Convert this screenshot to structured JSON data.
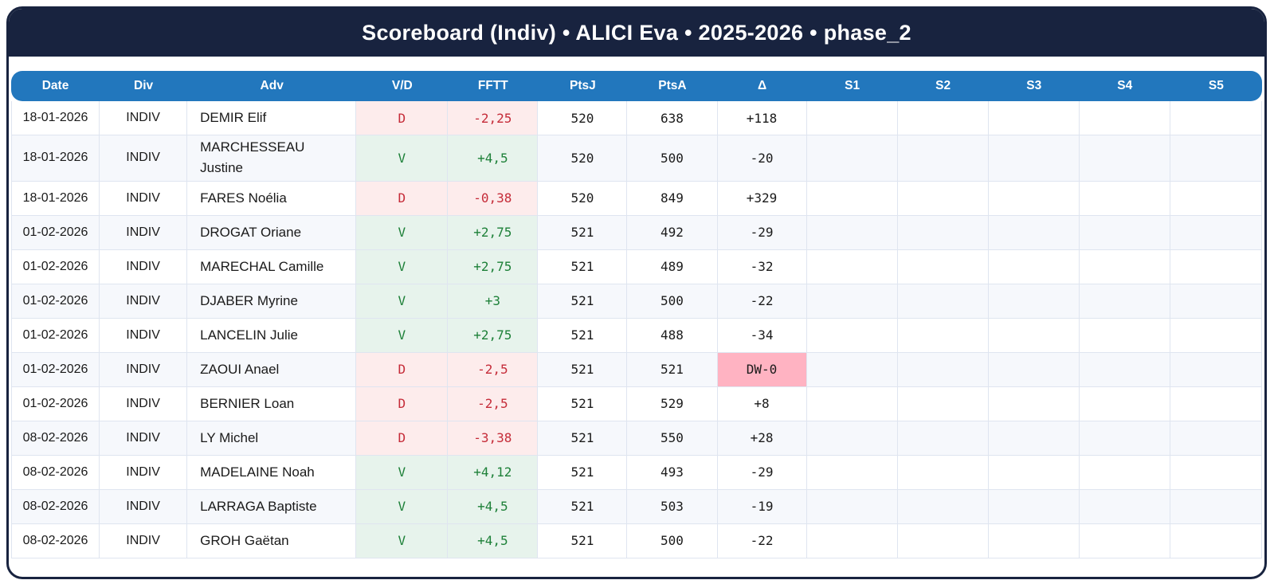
{
  "title": "Scoreboard (Indiv) • ALICI Eva • 2025-2026 • phase_2",
  "table": {
    "columns": [
      "Date",
      "Div",
      "Adv",
      "V/D",
      "FFTT",
      "PtsJ",
      "PtsA",
      "Δ",
      "S1",
      "S2",
      "S3",
      "S4",
      "S5"
    ],
    "rows": [
      {
        "date": "18-01-2026",
        "div": "INDIV",
        "adv": "DEMIR Elif",
        "vd": "D",
        "fftt": "-2,25",
        "ptsj": "520",
        "ptsa": "638",
        "delta": "+118",
        "flag": false,
        "sets": [
          "",
          "",
          "",
          "",
          ""
        ]
      },
      {
        "date": "18-01-2026",
        "div": "INDIV",
        "adv": "MARCHESSEAU Justine",
        "vd": "V",
        "fftt": "+4,5",
        "ptsj": "520",
        "ptsa": "500",
        "delta": "-20",
        "flag": false,
        "sets": [
          "",
          "",
          "",
          "",
          ""
        ]
      },
      {
        "date": "18-01-2026",
        "div": "INDIV",
        "adv": "FARES Noélia",
        "vd": "D",
        "fftt": "-0,38",
        "ptsj": "520",
        "ptsa": "849",
        "delta": "+329",
        "flag": false,
        "sets": [
          "",
          "",
          "",
          "",
          ""
        ]
      },
      {
        "date": "01-02-2026",
        "div": "INDIV",
        "adv": "DROGAT Oriane",
        "vd": "V",
        "fftt": "+2,75",
        "ptsj": "521",
        "ptsa": "492",
        "delta": "-29",
        "flag": false,
        "sets": [
          "",
          "",
          "",
          "",
          ""
        ]
      },
      {
        "date": "01-02-2026",
        "div": "INDIV",
        "adv": "MARECHAL Camille",
        "vd": "V",
        "fftt": "+2,75",
        "ptsj": "521",
        "ptsa": "489",
        "delta": "-32",
        "flag": false,
        "sets": [
          "",
          "",
          "",
          "",
          ""
        ]
      },
      {
        "date": "01-02-2026",
        "div": "INDIV",
        "adv": "DJABER Myrine",
        "vd": "V",
        "fftt": "+3",
        "ptsj": "521",
        "ptsa": "500",
        "delta": "-22",
        "flag": false,
        "sets": [
          "",
          "",
          "",
          "",
          ""
        ]
      },
      {
        "date": "01-02-2026",
        "div": "INDIV",
        "adv": "LANCELIN Julie",
        "vd": "V",
        "fftt": "+2,75",
        "ptsj": "521",
        "ptsa": "488",
        "delta": "-34",
        "flag": false,
        "sets": [
          "",
          "",
          "",
          "",
          ""
        ]
      },
      {
        "date": "01-02-2026",
        "div": "INDIV",
        "adv": "ZAOUI Anael",
        "vd": "D",
        "fftt": "-2,5",
        "ptsj": "521",
        "ptsa": "521",
        "delta": "DW-0",
        "flag": true,
        "sets": [
          "",
          "",
          "",
          "",
          ""
        ]
      },
      {
        "date": "01-02-2026",
        "div": "INDIV",
        "adv": "BERNIER Loan",
        "vd": "D",
        "fftt": "-2,5",
        "ptsj": "521",
        "ptsa": "529",
        "delta": "+8",
        "flag": false,
        "sets": [
          "",
          "",
          "",
          "",
          ""
        ]
      },
      {
        "date": "08-02-2026",
        "div": "INDIV",
        "adv": "LY Michel",
        "vd": "D",
        "fftt": "-3,38",
        "ptsj": "521",
        "ptsa": "550",
        "delta": "+28",
        "flag": false,
        "sets": [
          "",
          "",
          "",
          "",
          ""
        ]
      },
      {
        "date": "08-02-2026",
        "div": "INDIV",
        "adv": "MADELAINE Noah",
        "vd": "V",
        "fftt": "+4,12",
        "ptsj": "521",
        "ptsa": "493",
        "delta": "-29",
        "flag": false,
        "sets": [
          "",
          "",
          "",
          "",
          ""
        ]
      },
      {
        "date": "08-02-2026",
        "div": "INDIV",
        "adv": "LARRAGA Baptiste",
        "vd": "V",
        "fftt": "+4,5",
        "ptsj": "521",
        "ptsa": "503",
        "delta": "-19",
        "flag": false,
        "sets": [
          "",
          "",
          "",
          "",
          ""
        ]
      },
      {
        "date": "08-02-2026",
        "div": "INDIV",
        "adv": "GROH Gaëtan",
        "vd": "V",
        "fftt": "+4,5",
        "ptsj": "521",
        "ptsa": "500",
        "delta": "-22",
        "flag": false,
        "sets": [
          "",
          "",
          "",
          "",
          ""
        ]
      }
    ]
  },
  "colors": {
    "navy": "#18233f",
    "blue": "#2277bd",
    "win_text": "#1d8038",
    "win_bg": "#e7f3ec",
    "loss_text": "#c52b38",
    "loss_bg": "#fdecec",
    "flag_bg": "#ffb3c2",
    "row_alt": "#f6f8fc",
    "border": "#dfe5f0"
  }
}
